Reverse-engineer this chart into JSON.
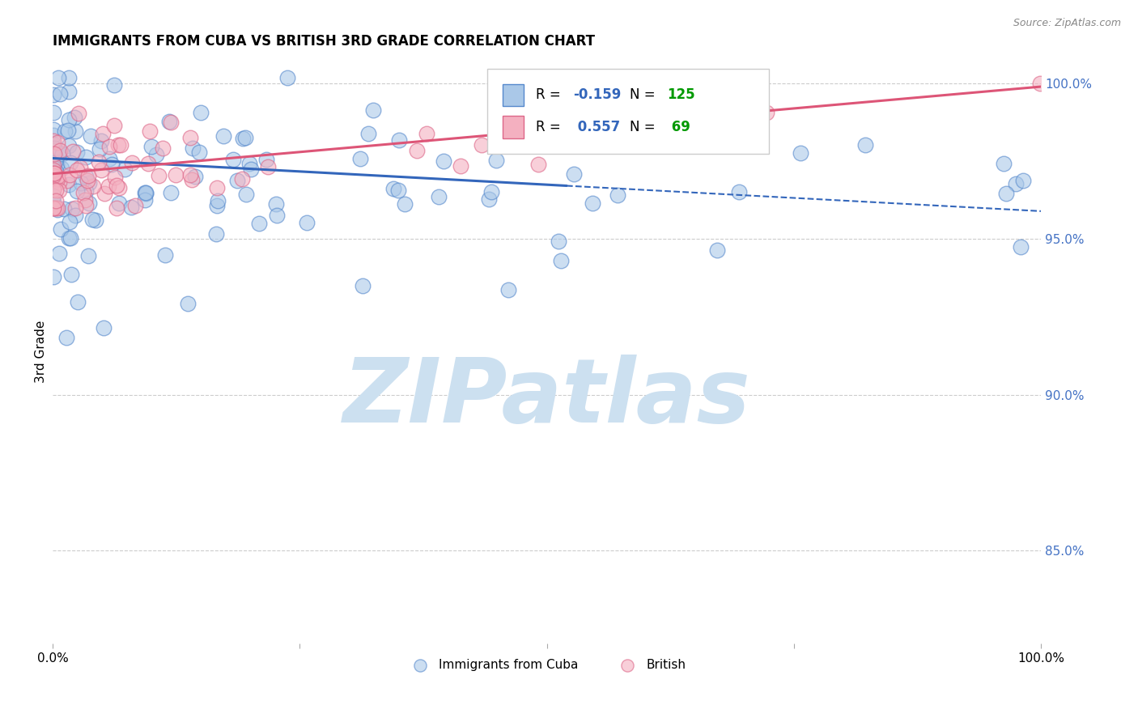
{
  "title": "IMMIGRANTS FROM CUBA VS BRITISH 3RD GRADE CORRELATION CHART",
  "source": "Source: ZipAtlas.com",
  "ylabel": "3rd Grade",
  "x_min": 0.0,
  "x_max": 1.0,
  "y_min": 0.82,
  "y_max": 1.008,
  "ytick_labels": [
    "85.0%",
    "90.0%",
    "95.0%",
    "100.0%"
  ],
  "ytick_values": [
    0.85,
    0.9,
    0.95,
    1.0
  ],
  "right_ytick_color": "#4472c4",
  "cuba_R": -0.159,
  "cuba_N": 125,
  "british_R": 0.557,
  "british_N": 69,
  "cuba_color": "#aac8e8",
  "british_color": "#f4b0c0",
  "cuba_edge_color": "#5588cc",
  "british_edge_color": "#dd6688",
  "cuba_line_color": "#3366bb",
  "british_line_color": "#dd5577",
  "legend_R_color": "#3366bb",
  "legend_N_color": "#009900",
  "watermark_text": "ZIPatlas",
  "watermark_color": "#cce0f0",
  "figwidth": 14.06,
  "figheight": 8.92,
  "dpi": 100,
  "cuba_line_start_x": 0.0,
  "cuba_line_start_y": 0.976,
  "cuba_line_solid_end_x": 0.52,
  "cuba_line_solid_end_y": 0.967,
  "cuba_line_dash_end_x": 1.0,
  "cuba_line_dash_end_y": 0.959,
  "british_line_start_x": 0.0,
  "british_line_start_y": 0.971,
  "british_line_end_x": 1.0,
  "british_line_end_y": 0.999
}
